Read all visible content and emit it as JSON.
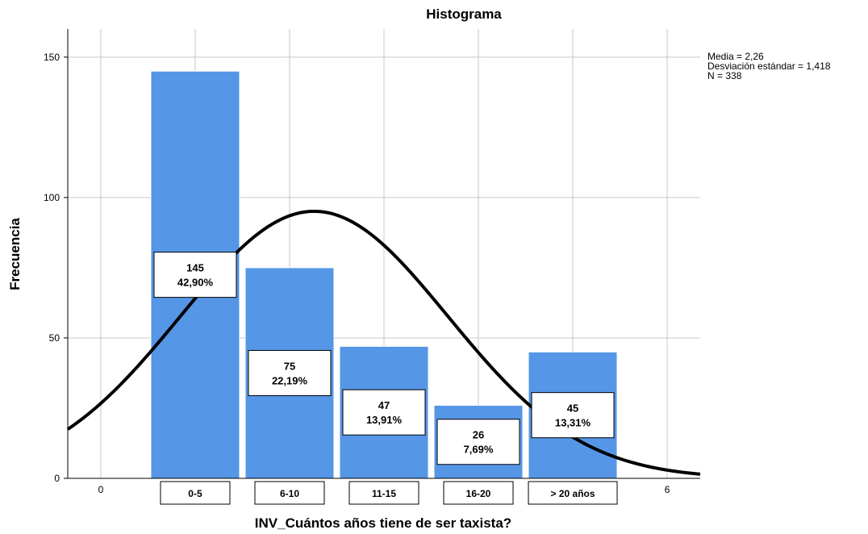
{
  "chart_data": {
    "type": "bar",
    "title": "Histograma",
    "xlabel": "INV_Cuántos años tiene de ser taxista?",
    "ylabel": "Frecuencia",
    "categories": [
      "0-5",
      "6-10",
      "11-15",
      "16-20",
      "> 20 años"
    ],
    "category_positions": [
      1,
      2,
      3,
      4,
      5
    ],
    "values": [
      145,
      75,
      47,
      26,
      45
    ],
    "percent_labels": [
      "42,90%",
      "22,19%",
      "13,91%",
      "7,69%",
      "13,31%"
    ],
    "ylim": [
      0,
      160
    ],
    "yticks": [
      0,
      50,
      100,
      150
    ],
    "xlim": [
      -0.35,
      6.35
    ],
    "xticks": [
      0,
      6
    ],
    "bar_color": "#5596e6",
    "grid": true,
    "normal_curve": {
      "mean": 2.26,
      "sd": 1.418,
      "n": 338,
      "bin_width": 1
    },
    "stats": {
      "mean_label": "Media = 2,26",
      "sd_label": "Desviación estándar = 1,418",
      "n_label": "N = 338"
    },
    "legend_placement": "top-right"
  }
}
